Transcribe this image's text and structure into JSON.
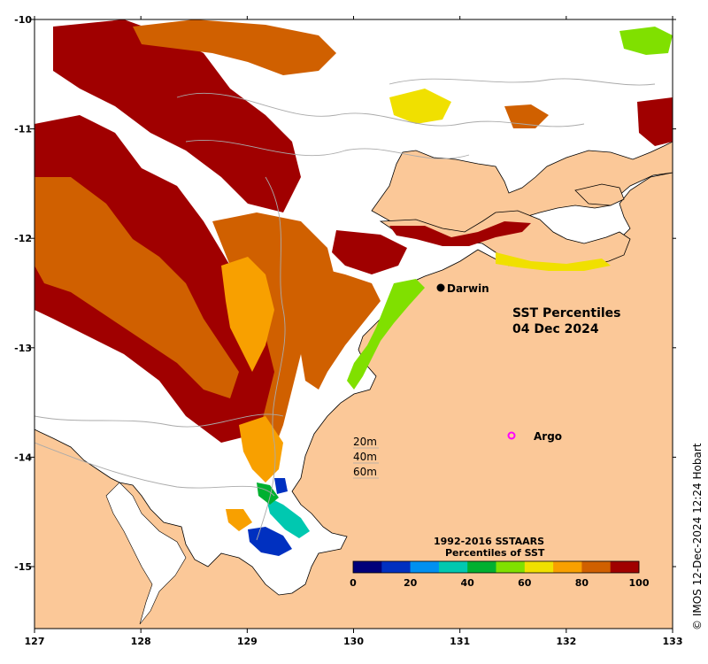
{
  "title_line1": "SST Percentiles",
  "title_line2": "04 Dec 2024",
  "places": {
    "darwin": "Darwin",
    "argo": "Argo"
  },
  "contours": [
    "20m",
    "40m",
    "60m"
  ],
  "colorbar": {
    "title_line1": "1992-2016 SSTAARS",
    "title_line2": "Percentiles of SST",
    "ticks": [
      "0",
      "20",
      "40",
      "60",
      "80",
      "100"
    ],
    "colors": [
      "#00007a",
      "#0030c0",
      "#0090f0",
      "#00c8b0",
      "#00b030",
      "#80e000",
      "#f0e000",
      "#f8a000",
      "#d06000",
      "#a00000"
    ]
  },
  "x_ticks": [
    "127",
    "128",
    "129",
    "130",
    "131",
    "132",
    "133"
  ],
  "y_ticks": [
    "-10",
    "-11",
    "-12",
    "-13",
    "-14",
    "-15"
  ],
  "credit": "© IMOS 12-Dec-2024 12:24 Hobart",
  "colors": {
    "land": "#fbc898",
    "no_data": "#ffffff",
    "argo_marker": "#ff00ff",
    "darwin_marker": "#000000"
  }
}
